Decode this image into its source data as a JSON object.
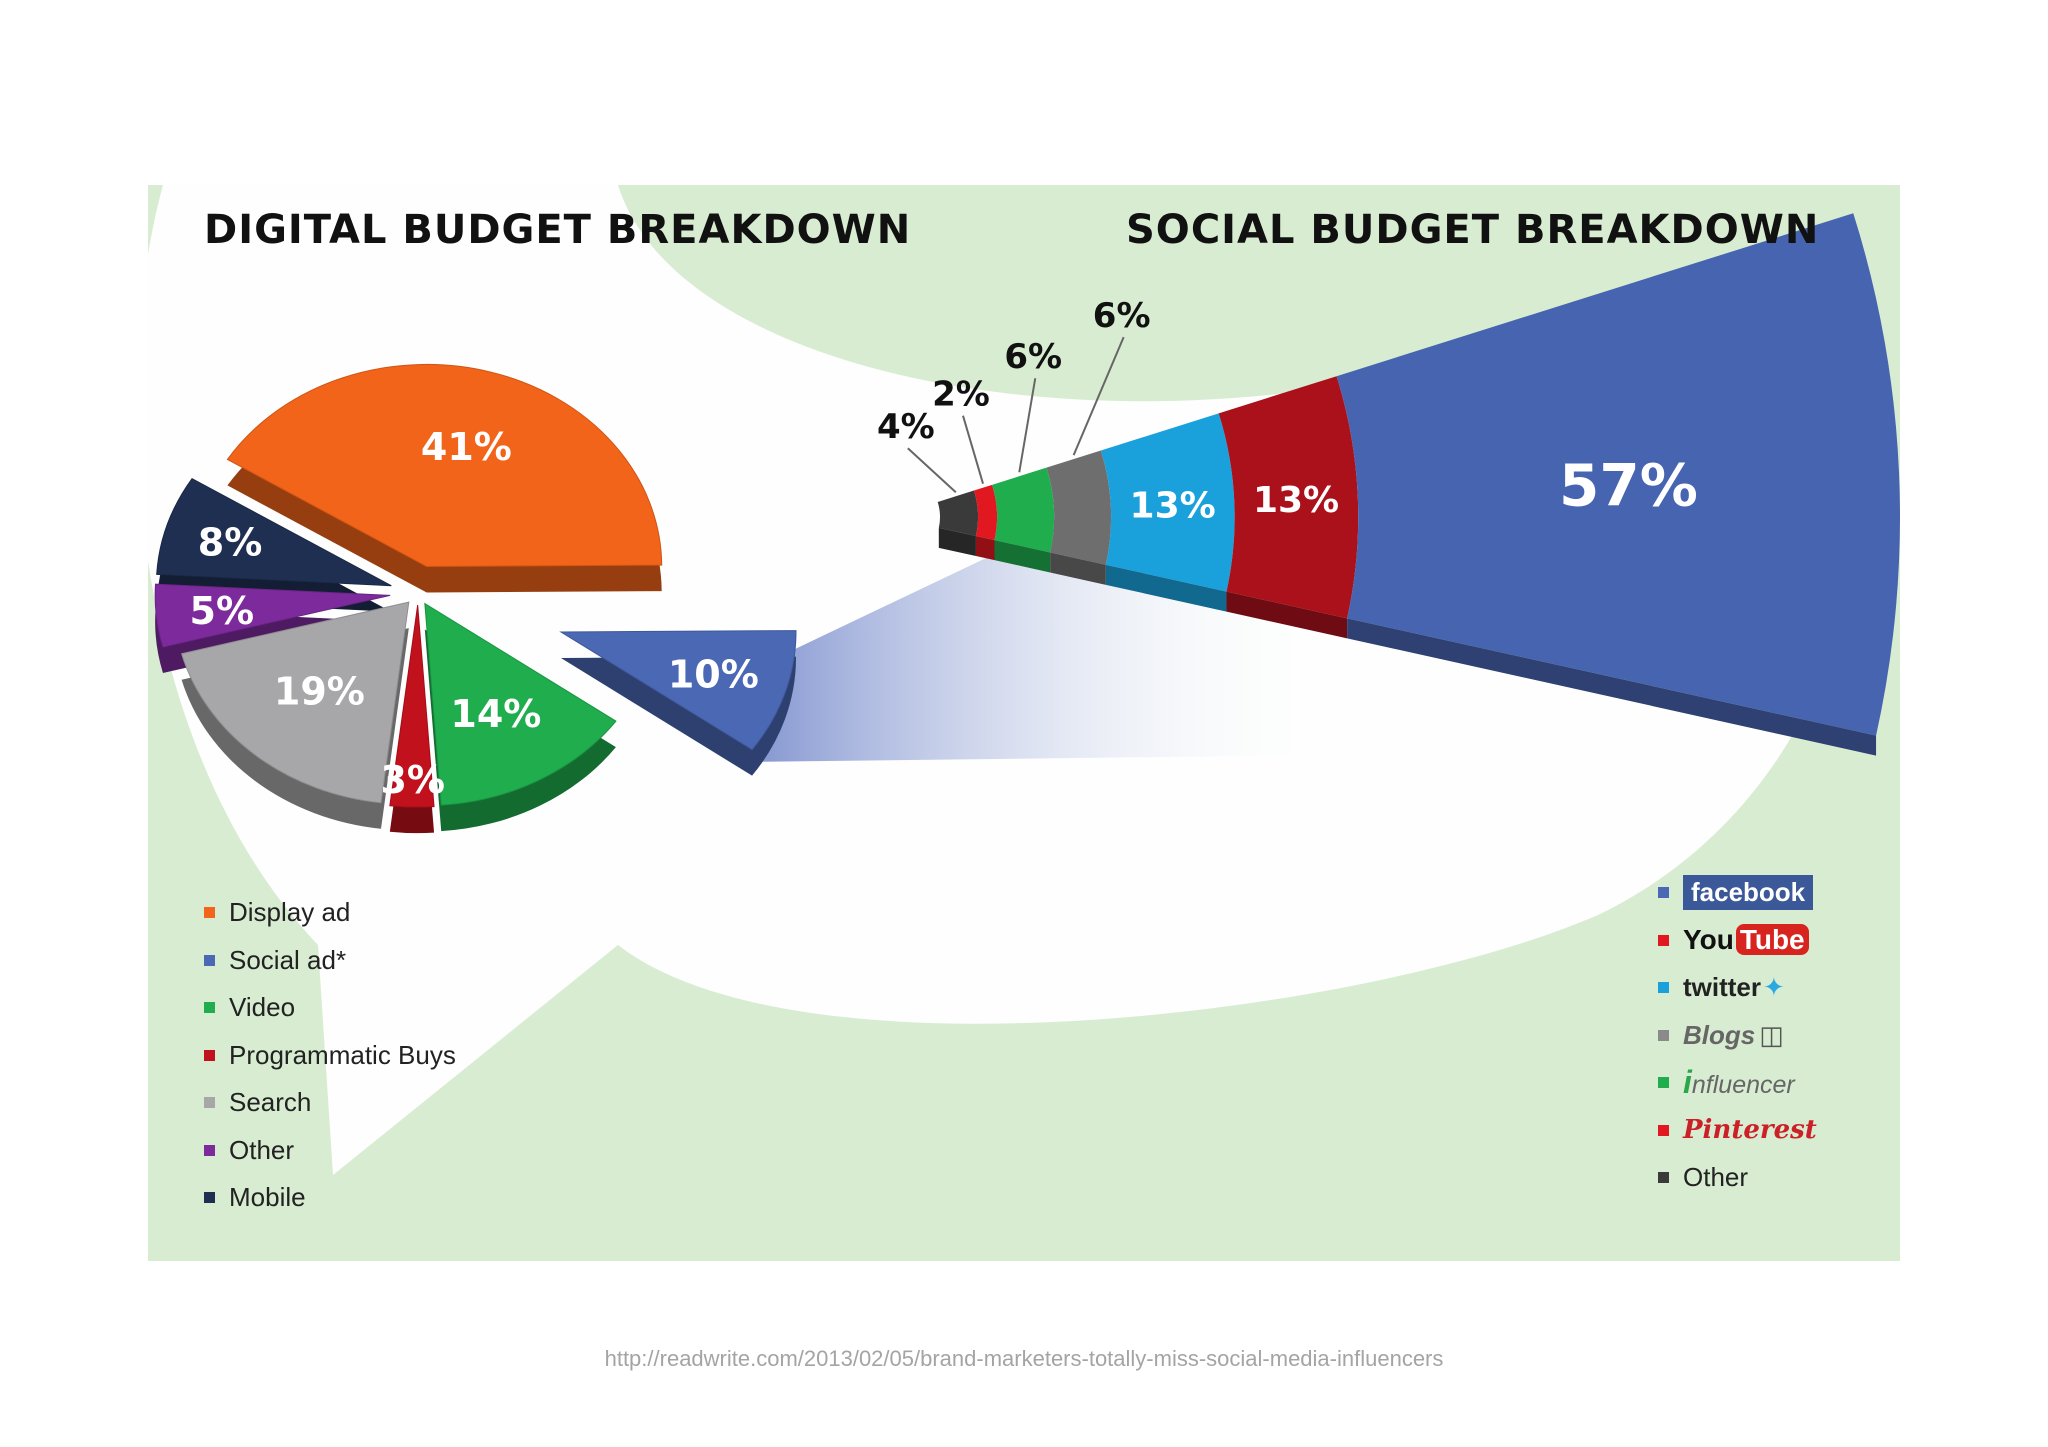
{
  "titles": {
    "left": "DIGITAL BUDGET BREAKDOWN",
    "right": "SOCIAL BUDGET BREAKDOWN"
  },
  "chart_data": [
    {
      "type": "pie",
      "title": "DIGITAL BUDGET BREAKDOWN",
      "categories": [
        "Display ad",
        "Social ad*",
        "Video",
        "Programmatic Buys",
        "Search",
        "Other",
        "Mobile"
      ],
      "values": [
        41,
        10,
        14,
        3,
        19,
        5,
        8
      ],
      "labels": [
        "41%",
        "10%",
        "14%",
        "3%",
        "19%",
        "5%",
        "8%"
      ],
      "colors": [
        "#f26419",
        "#4a68b4",
        "#1fad4e",
        "#c0111d",
        "#a7a7a9",
        "#7d2a9c",
        "#1f2f52"
      ],
      "legend": "bottom-left"
    },
    {
      "type": "pie",
      "title": "SOCIAL BUDGET BREAKDOWN",
      "categories": [
        "Other",
        "Pinterest",
        "Influencer",
        "Blogs",
        "Twitter",
        "YouTube",
        "Facebook"
      ],
      "values": [
        4,
        2,
        6,
        6,
        13,
        13,
        57
      ],
      "labels": [
        "4%",
        "2%",
        "6%",
        "6%",
        "13%",
        "13%",
        "57%"
      ],
      "colors": [
        "#3a3a3a",
        "#e11820",
        "#1fad4e",
        "#6e6e6e",
        "#1aa1dc",
        "#aa111b",
        "#4664b0"
      ],
      "legend": "bottom-right"
    }
  ],
  "legend_left": [
    {
      "label": "Display ad",
      "color": "#f26419"
    },
    {
      "label": "Social ad*",
      "color": "#4a68b4"
    },
    {
      "label": "Video",
      "color": "#1fad4e"
    },
    {
      "label": "Programmatic Buys",
      "color": "#c0111d"
    },
    {
      "label": "Search",
      "color": "#a7a7a9"
    },
    {
      "label": "Other",
      "color": "#7d2a9c"
    },
    {
      "label": "Mobile",
      "color": "#1f2f52"
    }
  ],
  "legend_right": {
    "facebook": {
      "text": "facebook",
      "color": "#4a68b4"
    },
    "youtube": {
      "you": "You",
      "tube": "Tube",
      "color": "#e11820"
    },
    "twitter": {
      "text": "twitter",
      "color": "#1aa1dc"
    },
    "blogs": {
      "text": "Blogs",
      "color": "#8a8a8a"
    },
    "influencer": {
      "i": "i",
      "text": "nfluencer",
      "color": "#1fad4e"
    },
    "pinterest": {
      "text": "Pinterest",
      "color": "#e11820"
    },
    "other": {
      "text": "Other",
      "color": "#3a3a3a"
    }
  },
  "source": "http://readwrite.com/2013/02/05/brand-marketers-totally-miss-social-media-influencers"
}
